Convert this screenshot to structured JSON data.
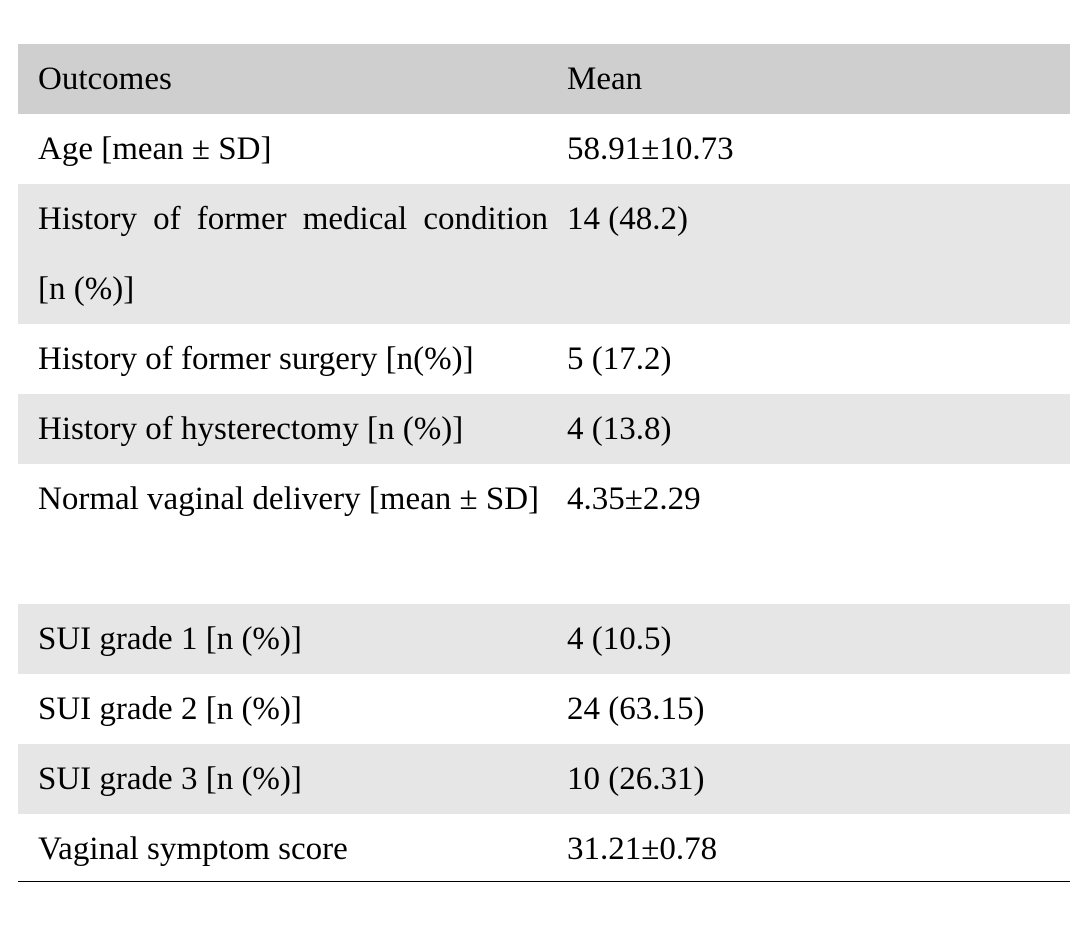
{
  "table": {
    "header": {
      "outcomes": "Outcomes",
      "mean": "Mean"
    },
    "rows": [
      {
        "outcome": "Age [mean ± SD]",
        "mean": "58.91±10.73"
      },
      {
        "outcome": "History of former medical condition [n (%)]",
        "mean": "14 (48.2)"
      },
      {
        "outcome": "History of former surgery [n(%)]",
        "mean": "5 (17.2)"
      },
      {
        "outcome": "History of hysterectomy [n (%)]",
        "mean": "4 (13.8)"
      },
      {
        "outcome": "Normal vaginal delivery [mean ± SD]",
        "mean": "4.35±2.29"
      },
      {
        "outcome": "SUI grade 1 [n (%)]",
        "mean": "4 (10.5)"
      },
      {
        "outcome": "SUI grade 2 [n (%)]",
        "mean": "24 (63.15)"
      },
      {
        "outcome": "SUI grade 3 [n (%)]",
        "mean": "10 (26.31)"
      },
      {
        "outcome": "Vaginal symptom score",
        "mean": "31.21±0.78"
      }
    ]
  }
}
